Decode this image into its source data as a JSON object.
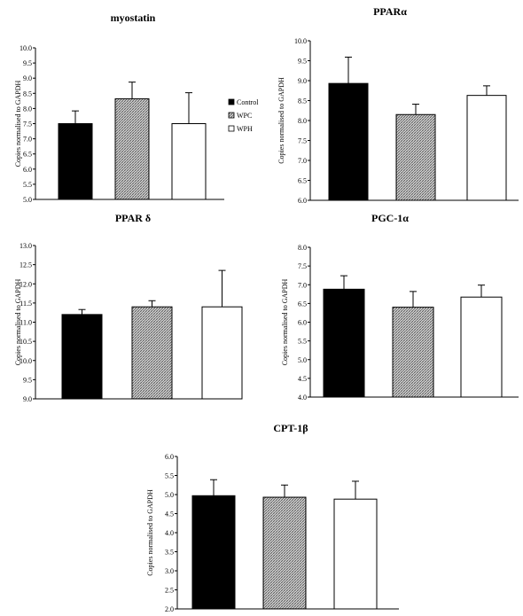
{
  "legend": [
    {
      "name": "Control",
      "fill": "solid-black"
    },
    {
      "name": "WPC",
      "fill": "hatched"
    },
    {
      "name": "WPH",
      "fill": "white"
    }
  ],
  "colors": {
    "control": "#000000",
    "wpc_hatch": "#555555",
    "wph": "#ffffff",
    "axis": "#000000"
  },
  "chart_data": [
    {
      "type": "bar",
      "title": "myostatin",
      "ylabel": "Copies normalised to GAPDH",
      "categories": [
        "Control",
        "WPC",
        "WPH"
      ],
      "values": [
        7.5,
        8.32,
        7.5
      ],
      "errors": [
        0.42,
        0.55,
        1.02
      ],
      "ylim": [
        5.0,
        10.0
      ],
      "yticks": [
        "5.0",
        "5.5",
        "6.0",
        "6.5",
        "7.0",
        "7.5",
        "8.0",
        "8.5",
        "9.0",
        "9.5",
        "10.0"
      ]
    },
    {
      "type": "bar",
      "title": "PPARα",
      "ylabel": "Copies normalised to GAPDH",
      "categories": [
        "Control",
        "WPC",
        "WPH"
      ],
      "values": [
        8.93,
        8.15,
        8.63
      ],
      "errors": [
        0.66,
        0.26,
        0.24
      ],
      "ylim": [
        6.0,
        10.0
      ],
      "yticks": [
        "6.0",
        "6.5",
        "7.0",
        "7.5",
        "8.0",
        "8.5",
        "9.0",
        "9.5",
        "10.0"
      ]
    },
    {
      "type": "bar",
      "title": "PPAR δ",
      "ylabel": "Copies normalised to GAPDH",
      "categories": [
        "Control",
        "WPC",
        "WPH"
      ],
      "values": [
        11.2,
        11.4,
        11.4
      ],
      "errors": [
        0.13,
        0.16,
        0.95
      ],
      "ylim": [
        9.0,
        13.0
      ],
      "yticks": [
        "9.0",
        "9.5",
        "10.0",
        "10.5",
        "11.0",
        "11.5",
        "12.0",
        "12.5",
        "13.0"
      ]
    },
    {
      "type": "bar",
      "title": "PGC-1α",
      "ylabel": "Copies normalised to GAPDH",
      "categories": [
        "Control",
        "WPC",
        "WPH"
      ],
      "values": [
        6.88,
        6.4,
        6.67
      ],
      "errors": [
        0.36,
        0.42,
        0.32
      ],
      "ylim": [
        4.0,
        8.0
      ],
      "yticks": [
        "4.0",
        "4.5",
        "5.0",
        "5.5",
        "6.0",
        "6.5",
        "7.0",
        "7.5",
        "8.0"
      ]
    },
    {
      "type": "bar",
      "title": "CPT-1β",
      "ylabel": "Copies normalised to GAPDH",
      "categories": [
        "Control",
        "WPC",
        "WPH"
      ],
      "values": [
        4.97,
        4.93,
        4.88
      ],
      "errors": [
        0.42,
        0.32,
        0.47
      ],
      "ylim": [
        2.0,
        6.0
      ],
      "yticks": [
        "2.0",
        "2.5",
        "3.0",
        "3.5",
        "4.0",
        "4.5",
        "5.0",
        "5.5",
        "6.0"
      ]
    }
  ]
}
